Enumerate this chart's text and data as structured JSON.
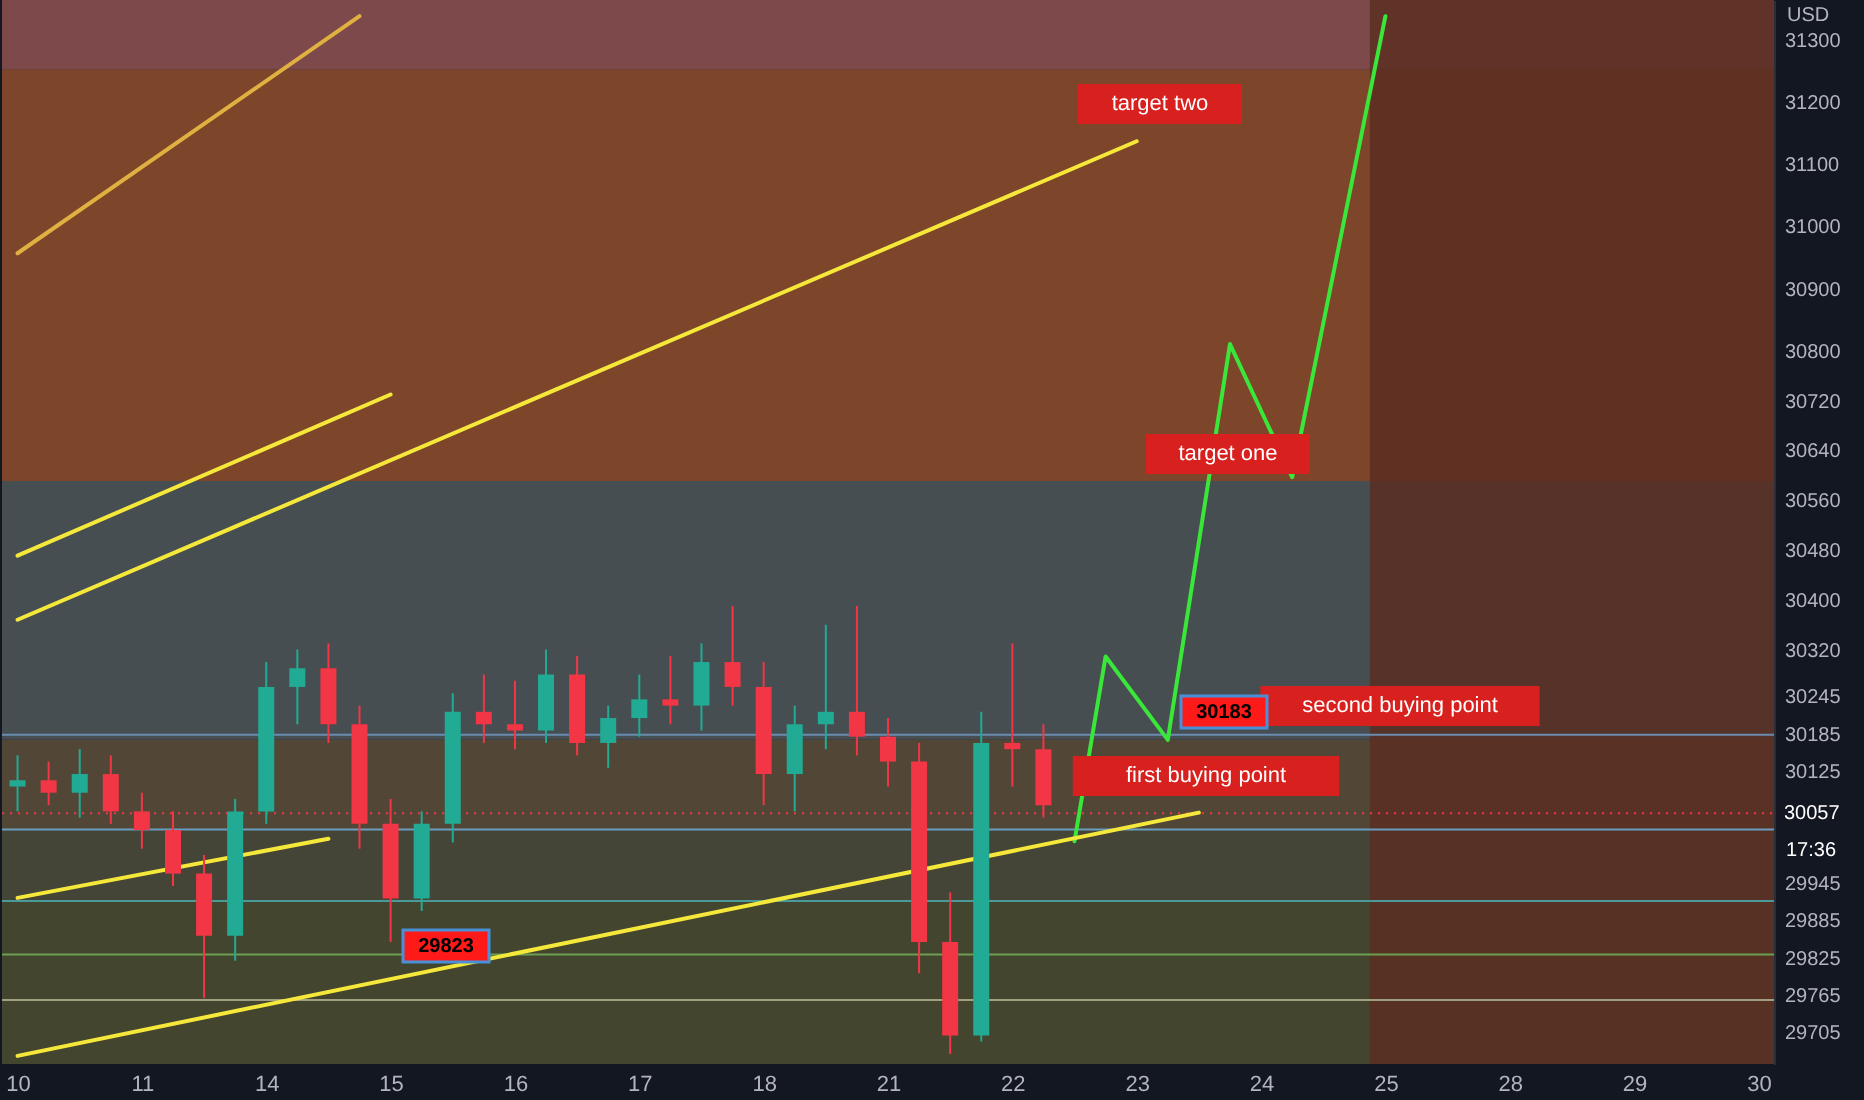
{
  "chart_data": {
    "type": "candlestick",
    "ylabel": "USD",
    "categories": [
      "10",
      null,
      null,
      null,
      "11",
      null,
      null,
      null,
      "14",
      null,
      null,
      null,
      "15",
      null,
      null,
      null,
      "16",
      null,
      null,
      null,
      "17",
      null,
      null,
      null,
      "18",
      null,
      null,
      null,
      "21",
      null,
      null,
      null,
      "22",
      null,
      null,
      null,
      "23",
      null,
      null,
      null,
      "24",
      null,
      null,
      null,
      "25",
      null,
      null,
      null,
      "28",
      null,
      null,
      null,
      "29",
      null,
      null,
      null,
      "30"
    ],
    "ohlc": [
      [
        30100,
        30150,
        30060,
        30110
      ],
      [
        30110,
        30140,
        30070,
        30090
      ],
      [
        30090,
        30160,
        30050,
        30120
      ],
      [
        30120,
        30150,
        30040,
        30060
      ],
      [
        30060,
        30090,
        30000,
        30030
      ],
      [
        30030,
        30060,
        29940,
        29960
      ],
      [
        29960,
        29990,
        29760,
        29860
      ],
      [
        29860,
        30080,
        29820,
        30060
      ],
      [
        30060,
        30300,
        30040,
        30260
      ],
      [
        30260,
        30320,
        30200,
        30290
      ],
      [
        30290,
        30330,
        30170,
        30200
      ],
      [
        30200,
        30230,
        30000,
        30040
      ],
      [
        30040,
        30080,
        29850,
        29920
      ],
      [
        29920,
        30060,
        29900,
        30040
      ],
      [
        30040,
        30250,
        30010,
        30220
      ],
      [
        30220,
        30280,
        30170,
        30200
      ],
      [
        30200,
        30270,
        30160,
        30190
      ],
      [
        30190,
        30320,
        30170,
        30280
      ],
      [
        30280,
        30310,
        30150,
        30170
      ],
      [
        30170,
        30230,
        30130,
        30210
      ],
      [
        30210,
        30280,
        30180,
        30240
      ],
      [
        30240,
        30310,
        30200,
        30230
      ],
      [
        30230,
        30330,
        30190,
        30300
      ],
      [
        30300,
        30390,
        30230,
        30260
      ],
      [
        30260,
        30300,
        30070,
        30120
      ],
      [
        30120,
        30230,
        30060,
        30200
      ],
      [
        30200,
        30360,
        30160,
        30220
      ],
      [
        30220,
        30390,
        30150,
        30180
      ],
      [
        30180,
        30210,
        30100,
        30140
      ],
      [
        30140,
        30170,
        29800,
        29850
      ],
      [
        29850,
        29930,
        29670,
        29700
      ],
      [
        29700,
        30220,
        29690,
        30170
      ],
      [
        30170,
        30330,
        30100,
        30160
      ],
      [
        30160,
        30200,
        30050,
        30070
      ],
      null,
      null,
      null,
      null,
      null,
      null,
      null,
      null,
      null,
      null,
      null,
      null,
      null,
      null,
      null,
      null,
      null,
      null,
      null,
      null,
      null,
      null,
      null
    ],
    "colors": [
      "#22ab94",
      "#f23645",
      "#22ab94",
      "#f23645",
      "#f23645",
      "#f23645",
      "#f23645",
      "#22ab94",
      "#22ab94",
      "#22ab94",
      "#f23645",
      "#f23645",
      "#f23645",
      "#22ab94",
      "#22ab94",
      "#f23645",
      "#f23645",
      "#22ab94",
      "#f23645",
      "#22ab94",
      "#22ab94",
      "#f23645",
      "#22ab94",
      "#f23645",
      "#f23645",
      "#22ab94",
      "#22ab94",
      "#f23645",
      "#f23645",
      "#f23645",
      "#f23645",
      "#22ab94",
      "#f23645",
      "#f23645",
      null,
      null,
      null,
      null,
      null,
      null,
      null,
      null,
      null,
      null,
      null,
      null,
      null,
      null,
      null,
      null,
      null,
      null,
      null,
      null,
      null,
      null,
      null
    ],
    "series": [
      {
        "type": "line",
        "color": "#39e639",
        "values": [
          null,
          null,
          null,
          null,
          null,
          null,
          null,
          null,
          null,
          null,
          null,
          null,
          null,
          null,
          null,
          null,
          null,
          null,
          null,
          null,
          null,
          null,
          null,
          null,
          null,
          null,
          null,
          null,
          null,
          null,
          null,
          null,
          null,
          null,
          30012,
          30309,
          null,
          30175,
          null,
          30811,
          null,
          30597,
          null,
          null,
          31338,
          null,
          null,
          null,
          null,
          null,
          null,
          null,
          null,
          null,
          null,
          null,
          null
        ]
      },
      {
        "type": "line",
        "color": "#f5e83b",
        "values": [
          29667,
          null,
          null,
          null,
          null,
          null,
          null,
          null,
          null,
          null,
          null,
          null,
          null,
          null,
          null,
          null,
          null,
          null,
          null,
          null,
          null,
          null,
          null,
          null,
          null,
          null,
          null,
          null,
          null,
          null,
          null,
          null,
          null,
          null,
          null,
          null,
          null,
          null,
          30058,
          null,
          null,
          null,
          null,
          null,
          null,
          null,
          null,
          null,
          null,
          null,
          null,
          null,
          null,
          null,
          null,
          null,
          null
        ]
      },
      {
        "type": "line",
        "color": "#f5e83b",
        "values": [
          29921,
          null,
          null,
          null,
          null,
          null,
          null,
          null,
          null,
          null,
          30016,
          null,
          null,
          null,
          null,
          null,
          null,
          null,
          null,
          null,
          null,
          null,
          null,
          null,
          null,
          null,
          null,
          null,
          null,
          null,
          null,
          null,
          null,
          null,
          null,
          null,
          null,
          null,
          null,
          null,
          null,
          null,
          null,
          null,
          null,
          null,
          null,
          null,
          null,
          null,
          null,
          null,
          null,
          null,
          null,
          null,
          null
        ]
      },
      {
        "type": "line",
        "color": "#f5e83b",
        "values": [
          30368,
          null,
          null,
          null,
          null,
          null,
          null,
          null,
          null,
          null,
          null,
          null,
          null,
          null,
          null,
          null,
          null,
          null,
          null,
          null,
          null,
          null,
          null,
          null,
          null,
          null,
          null,
          null,
          null,
          null,
          null,
          null,
          null,
          null,
          null,
          null,
          31137,
          null,
          null,
          null,
          null,
          null,
          null,
          null,
          null,
          null,
          null,
          null,
          null,
          null,
          null,
          null,
          null,
          null,
          null,
          null,
          null
        ]
      },
      {
        "type": "line",
        "color": "#f5e83b",
        "values": [
          30471,
          null,
          null,
          null,
          null,
          null,
          null,
          null,
          null,
          null,
          null,
          null,
          30730,
          null,
          null,
          null,
          null,
          null,
          null,
          null,
          null,
          null,
          null,
          null,
          null,
          null,
          null,
          null,
          null,
          null,
          null,
          null,
          null,
          null,
          null,
          null,
          null,
          null,
          null,
          null,
          null,
          null,
          null,
          null,
          null,
          null,
          null,
          null,
          null,
          null,
          null,
          null,
          null,
          null,
          null,
          null,
          null
        ]
      },
      {
        "type": "line",
        "color": "#e0b040",
        "values": [
          30957,
          null,
          null,
          null,
          null,
          null,
          null,
          null,
          null,
          null,
          null,
          31338,
          null,
          null,
          null,
          null,
          null,
          null,
          null,
          null,
          null,
          null,
          null,
          null,
          null,
          null,
          null,
          null,
          null,
          null,
          null,
          null,
          null,
          null,
          null,
          null,
          null,
          null,
          null,
          null,
          null,
          null,
          null,
          null,
          null,
          null,
          null,
          null,
          null,
          null,
          null,
          null,
          null,
          null,
          null,
          null,
          null
        ]
      }
    ],
    "bands": [
      {
        "axis": "y",
        "from": 31252,
        "to": 31364,
        "color": "#8a4f4f"
      },
      {
        "axis": "y",
        "from": 30591,
        "to": 31252,
        "color": "#8a4a2a"
      },
      {
        "axis": "y",
        "from": 30175,
        "to": 30591,
        "color": "#4c5456"
      },
      {
        "axis": "y",
        "from": 30031,
        "to": 30175,
        "color": "#5a4c3a"
      },
      {
        "axis": "y",
        "from": 29916,
        "to": 30031,
        "color": "#4a4a3a"
      },
      {
        "axis": "y",
        "from": 29654,
        "to": 29916,
        "color": "#4a4a30"
      },
      {
        "axis": "x",
        "from": "25",
        "to": "30",
        "color": "#5a2e22"
      }
    ],
    "ref_lines": [
      {
        "axis": "y",
        "value": 30183,
        "color": "#6a8cb0"
      },
      {
        "axis": "y",
        "value": 30031,
        "color": "#6a9ec0"
      },
      {
        "axis": "y",
        "value": 29916,
        "color": "#4a9a9a"
      },
      {
        "axis": "y",
        "value": 29830,
        "color": "#6aa050"
      },
      {
        "axis": "y",
        "value": 29757,
        "color": "#a0a080"
      },
      {
        "axis": "y",
        "value": 30057,
        "label": "30057",
        "color": "#f23645",
        "line_style": "dotted"
      }
    ],
    "annotations": [
      "target two",
      "target one",
      "second buying point",
      "first buying point",
      "30183",
      "29823",
      "17:36"
    ],
    "ylim": [
      29654,
      31364
    ],
    "yticks": [
      31300,
      31200,
      31100,
      31000,
      30900,
      30800,
      30720,
      30640,
      30560,
      30480,
      30400,
      30320,
      30245,
      30185,
      30125,
      29945,
      29885,
      29825,
      29765,
      29705
    ],
    "grid": false
  }
}
